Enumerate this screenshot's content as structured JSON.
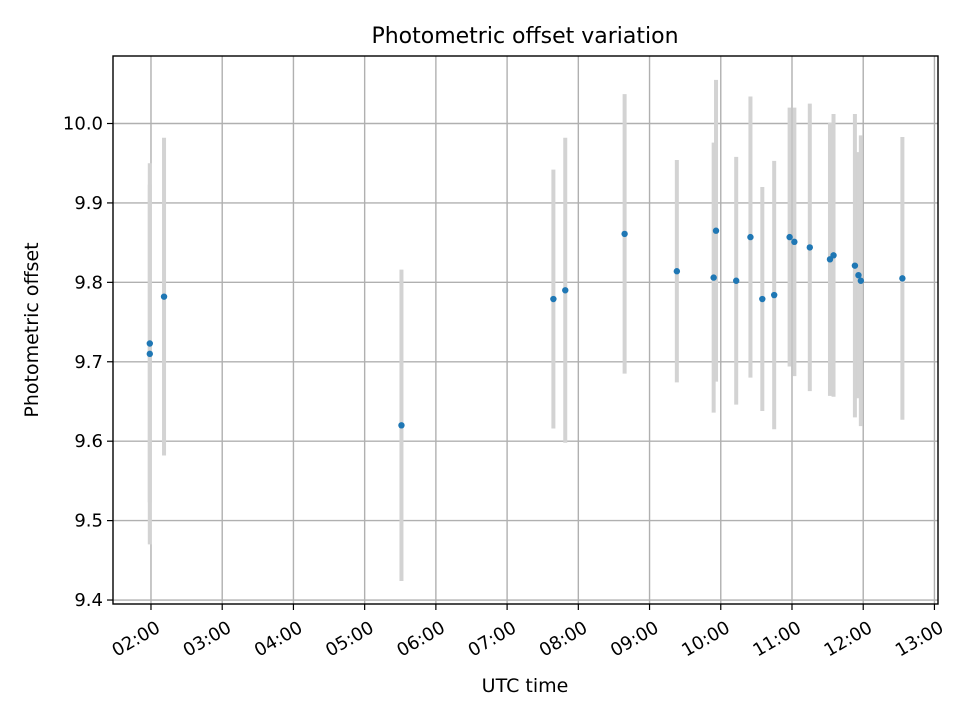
{
  "chart_data": {
    "type": "scatter",
    "title": "Photometric offset variation",
    "xlabel": "UTC time",
    "ylabel": "Photometric offset",
    "x_tick_labels": [
      "02:00",
      "03:00",
      "04:00",
      "05:00",
      "06:00",
      "07:00",
      "08:00",
      "09:00",
      "10:00",
      "11:00",
      "12:00",
      "13:00"
    ],
    "y_tick_labels": [
      "9.4",
      "9.5",
      "9.6",
      "9.7",
      "9.8",
      "9.9",
      "10.0"
    ],
    "y_ticks": [
      9.4,
      9.5,
      9.6,
      9.7,
      9.8,
      9.9,
      10.0
    ],
    "xlim": [
      "01:28",
      "13:03"
    ],
    "ylim": [
      9.395,
      10.085
    ],
    "grid": true,
    "colors": {
      "marker": "#1f77b4",
      "errorbar": "#d3d3d3",
      "grid": "#b0b0b0"
    },
    "series": [
      {
        "points": [
          {
            "x": "01:59",
            "y": 9.723,
            "err": 0.2
          },
          {
            "x": "01:59",
            "y": 9.71,
            "err": 0.24
          },
          {
            "x": "02:11",
            "y": 9.782,
            "err": 0.2
          },
          {
            "x": "05:31",
            "y": 9.62,
            "err": 0.196
          },
          {
            "x": "07:39",
            "y": 9.779,
            "err": 0.163
          },
          {
            "x": "07:49",
            "y": 9.79,
            "err": 0.192
          },
          {
            "x": "08:39",
            "y": 9.861,
            "err": 0.176
          },
          {
            "x": "09:23",
            "y": 9.814,
            "err": 0.14
          },
          {
            "x": "09:54",
            "y": 9.806,
            "err": 0.17
          },
          {
            "x": "09:56",
            "y": 9.865,
            "err": 0.19
          },
          {
            "x": "10:13",
            "y": 9.802,
            "err": 0.156
          },
          {
            "x": "10:25",
            "y": 9.857,
            "err": 0.177
          },
          {
            "x": "10:35",
            "y": 9.779,
            "err": 0.141
          },
          {
            "x": "10:45",
            "y": 9.784,
            "err": 0.169
          },
          {
            "x": "10:58",
            "y": 9.857,
            "err": 0.163
          },
          {
            "x": "11:02",
            "y": 9.851,
            "err": 0.169
          },
          {
            "x": "11:15",
            "y": 9.844,
            "err": 0.181
          },
          {
            "x": "11:32",
            "y": 9.829,
            "err": 0.172
          },
          {
            "x": "11:35",
            "y": 9.834,
            "err": 0.178
          },
          {
            "x": "11:53",
            "y": 9.821,
            "err": 0.191
          },
          {
            "x": "11:56",
            "y": 9.809,
            "err": 0.155
          },
          {
            "x": "11:58",
            "y": 9.802,
            "err": 0.183
          },
          {
            "x": "12:33",
            "y": 9.805,
            "err": 0.178
          }
        ]
      }
    ]
  }
}
